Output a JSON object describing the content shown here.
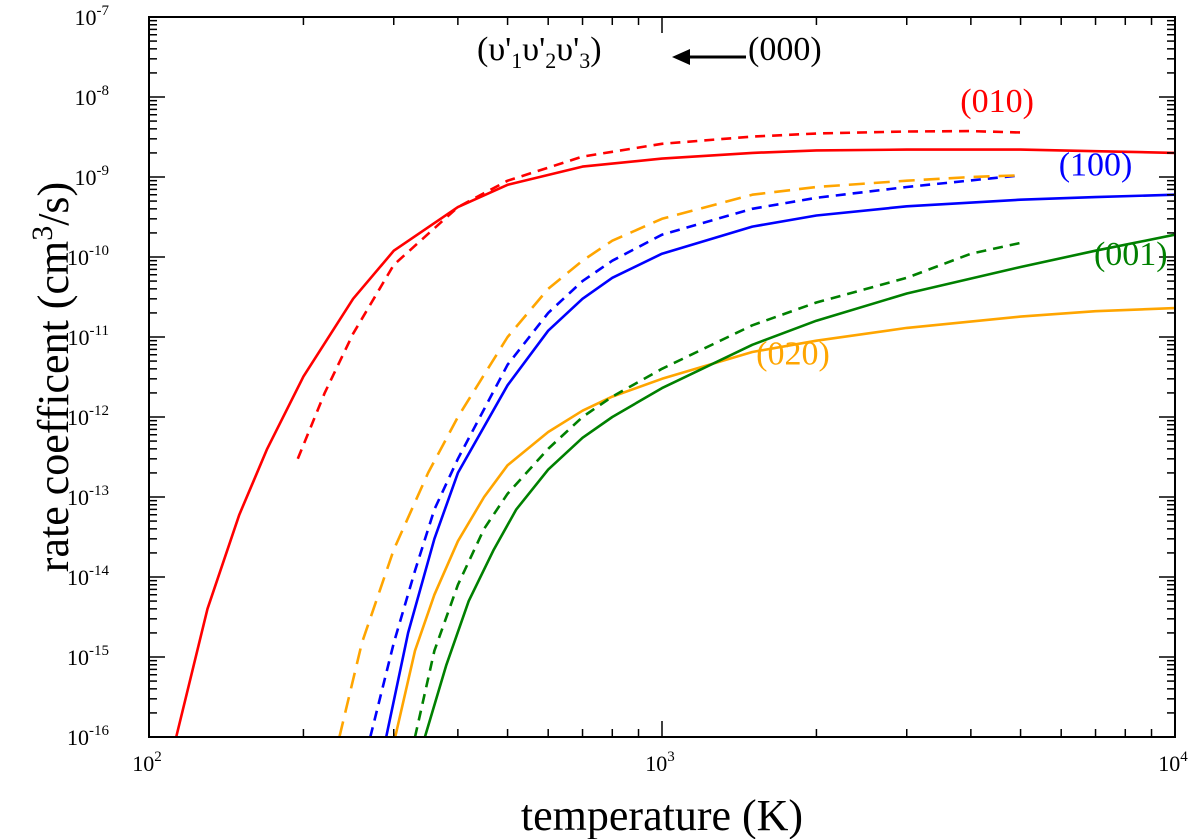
{
  "chart_data": {
    "type": "line",
    "xlabel": "temperature (K)",
    "ylabel": "rate coefficent (cm",
    "ylabel_sup": "3",
    "ylabel_end": "/s)",
    "xscale": "log",
    "yscale": "log",
    "xlim": [
      100,
      10000
    ],
    "ylim": [
      1e-16,
      1e-07
    ],
    "grid": false,
    "x_ticks": [
      {
        "value": 100,
        "base": "10",
        "exp": "2"
      },
      {
        "value": 1000,
        "base": "10",
        "exp": "3"
      },
      {
        "value": 10000,
        "base": "10",
        "exp": "4"
      }
    ],
    "y_ticks": [
      {
        "value": 1e-07,
        "base": "10",
        "exp": "-7"
      },
      {
        "value": 1e-08,
        "base": "10",
        "exp": "-8"
      },
      {
        "value": 1e-09,
        "base": "10",
        "exp": "-9"
      },
      {
        "value": 1e-10,
        "base": "10",
        "exp": "-10"
      },
      {
        "value": 1e-11,
        "base": "10",
        "exp": "-11"
      },
      {
        "value": 1e-12,
        "base": "10",
        "exp": "-12"
      },
      {
        "value": 1e-13,
        "base": "10",
        "exp": "-13"
      },
      {
        "value": 1e-14,
        "base": "10",
        "exp": "-14"
      },
      {
        "value": 1e-15,
        "base": "10",
        "exp": "-15"
      },
      {
        "value": 1e-16,
        "base": "10",
        "exp": "-16"
      }
    ],
    "header_annotation": {
      "from": "(000)",
      "to_parts": [
        "(υ'",
        "1",
        "υ'",
        "2",
        "υ'",
        "3",
        ")"
      ]
    },
    "series": [
      {
        "name": "(010)",
        "color": "#ff0000",
        "style": "solid",
        "x": [
          113,
          130,
          150,
          170,
          200,
          250,
          300,
          400,
          500,
          700,
          1000,
          1500,
          2000,
          3000,
          4000,
          5000,
          7000,
          10000
        ],
        "y": [
          1e-16,
          4e-15,
          6e-14,
          4e-13,
          3.2e-12,
          3e-11,
          1.2e-10,
          4.2e-10,
          8e-10,
          1.35e-09,
          1.7e-09,
          2e-09,
          2.15e-09,
          2.2e-09,
          2.2e-09,
          2.2e-09,
          2.1e-09,
          2e-09
        ]
      },
      {
        "name": "(010)",
        "color": "#ff0000",
        "style": "dashed",
        "x": [
          195,
          220,
          250,
          300,
          400,
          500,
          700,
          1000,
          1500,
          2000,
          3000,
          4000,
          5000
        ],
        "y": [
          3e-13,
          2e-12,
          1.1e-11,
          8e-11,
          4.2e-10,
          9e-10,
          1.8e-09,
          2.6e-09,
          3.2e-09,
          3.5e-09,
          3.7e-09,
          3.75e-09,
          3.6e-09
        ]
      },
      {
        "name": "(100)",
        "color": "#0000ff",
        "style": "solid",
        "x": [
          290,
          320,
          360,
          400,
          500,
          600,
          700,
          800,
          1000,
          1500,
          2000,
          3000,
          5000,
          7000,
          10000
        ],
        "y": [
          1e-16,
          2e-15,
          3e-14,
          2e-13,
          2.5e-12,
          1.2e-11,
          3e-11,
          5.5e-11,
          1.1e-10,
          2.4e-10,
          3.3e-10,
          4.3e-10,
          5.2e-10,
          5.6e-10,
          6e-10
        ]
      },
      {
        "name": "(100)",
        "color": "#0000ff",
        "style": "dashed",
        "x": [
          270,
          300,
          330,
          360,
          400,
          500,
          600,
          700,
          800,
          1000,
          1500,
          2000,
          3000,
          5000
        ],
        "y": [
          1e-16,
          1.5e-15,
          1.2e-14,
          7e-14,
          3e-13,
          4.5e-12,
          2e-11,
          5e-11,
          9e-11,
          1.9e-10,
          4e-10,
          5.5e-10,
          7.5e-10,
          1.05e-09
        ]
      },
      {
        "name": "(020)",
        "color": "#ffa500",
        "style": "dashed",
        "x": [
          235,
          260,
          300,
          350,
          400,
          500,
          600,
          700,
          800,
          1000,
          1500,
          2000,
          3000,
          4000,
          5000
        ],
        "y": [
          1e-16,
          1.5e-15,
          2.2e-14,
          2e-13,
          1e-12,
          1e-11,
          4e-11,
          9e-11,
          1.6e-10,
          3e-10,
          6e-10,
          7.5e-10,
          9e-10,
          1e-09,
          1.05e-09
        ]
      },
      {
        "name": "(020)",
        "color": "#ffa500",
        "style": "solid",
        "x": [
          302,
          330,
          360,
          400,
          450,
          500,
          600,
          700,
          800,
          1000,
          1500,
          2000,
          3000,
          5000,
          7000,
          10000
        ],
        "y": [
          1e-16,
          1.2e-15,
          6e-15,
          2.8e-14,
          1e-13,
          2.5e-13,
          6.5e-13,
          1.2e-12,
          1.8e-12,
          3e-12,
          6.5e-12,
          9e-12,
          1.3e-11,
          1.8e-11,
          2.1e-11,
          2.3e-11
        ]
      },
      {
        "name": "(001)",
        "color": "#008000",
        "style": "solid",
        "x": [
          345,
          380,
          420,
          470,
          520,
          600,
          700,
          800,
          1000,
          1500,
          2000,
          3000,
          5000,
          7000,
          10000
        ],
        "y": [
          1e-16,
          8e-16,
          5e-15,
          2.2e-14,
          7e-14,
          2.2e-13,
          5.5e-13,
          1e-12,
          2.3e-12,
          8e-12,
          1.6e-11,
          3.5e-11,
          7.5e-11,
          1.2e-10,
          1.9e-10
        ]
      },
      {
        "name": "(001)",
        "color": "#008000",
        "style": "dashed",
        "x": [
          330,
          360,
          400,
          450,
          500,
          600,
          700,
          800,
          1000,
          1500,
          2000,
          3000,
          4000,
          5000
        ],
        "y": [
          1e-16,
          1.2e-15,
          8e-15,
          4e-14,
          1.1e-13,
          4e-13,
          1e-12,
          1.8e-12,
          4e-12,
          1.4e-11,
          2.7e-11,
          5.5e-11,
          1.1e-10,
          1.5e-10
        ]
      }
    ],
    "series_labels": [
      {
        "text": "(010)",
        "color": "#ff0000",
        "x": 4500,
        "y": 6.5e-09
      },
      {
        "text": "(100)",
        "color": "#0000ff",
        "x": 7000,
        "y": 1.05e-09
      },
      {
        "text": "(001)",
        "color": "#008000",
        "x": 8200,
        "y": 8e-11
      },
      {
        "text": "(020)",
        "color": "#ffa500",
        "x": 1800,
        "y": 4.5e-12
      }
    ]
  }
}
